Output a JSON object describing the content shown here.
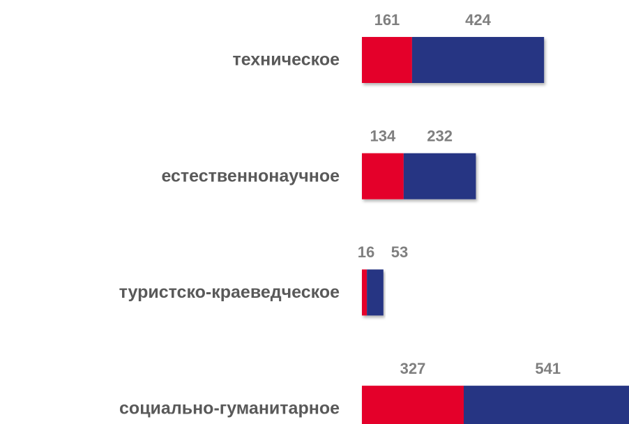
{
  "chart_data": {
    "type": "stacked-bar-horizontal",
    "categories": [
      "техническое",
      "естественнонаучное",
      "туристско-краеведческое",
      "социально-гуманитарное"
    ],
    "series": [
      {
        "color": "#e4002b",
        "values": [
          161,
          134,
          16,
          327
        ]
      },
      {
        "color": "#283583",
        "values": [
          424,
          232,
          53,
          541
        ]
      }
    ]
  }
}
